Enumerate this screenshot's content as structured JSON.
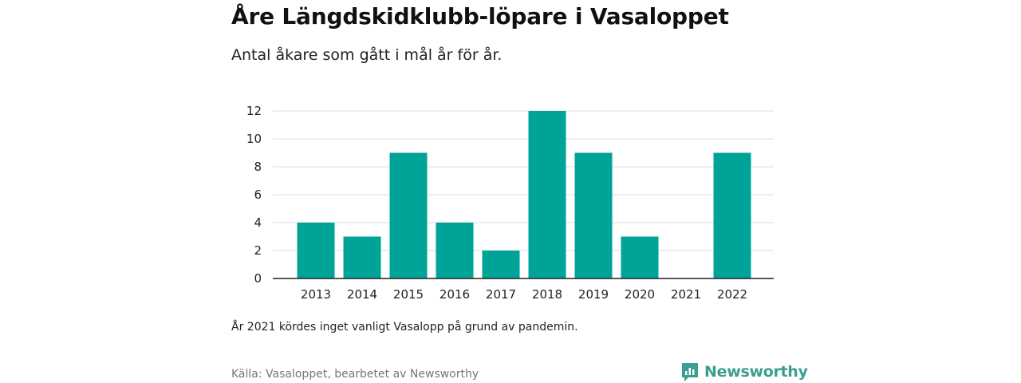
{
  "chart_data": {
    "type": "bar",
    "title": "Åre Längdskidklubb-löpare i Vasaloppet",
    "subtitle": "Antal åkare som gått i mål år för år.",
    "categories": [
      "2013",
      "2014",
      "2015",
      "2016",
      "2017",
      "2018",
      "2019",
      "2020",
      "2021",
      "2022"
    ],
    "values": [
      4,
      3,
      9,
      4,
      2,
      12,
      9,
      3,
      0,
      9
    ],
    "ylim": [
      0,
      12
    ],
    "yticks": [
      0,
      2,
      4,
      6,
      8,
      10,
      12
    ],
    "grid": true,
    "bar_color": "#00a398",
    "note": "År 2021 kördes inget vanligt Vasalopp på grund av pandemin.",
    "source": "Källa: Vasaloppet, bearbetet av Newsworthy"
  },
  "brand": {
    "name": "Newsworthy",
    "color": "#3a9e92",
    "icon": "newsworthy-logo-icon"
  }
}
